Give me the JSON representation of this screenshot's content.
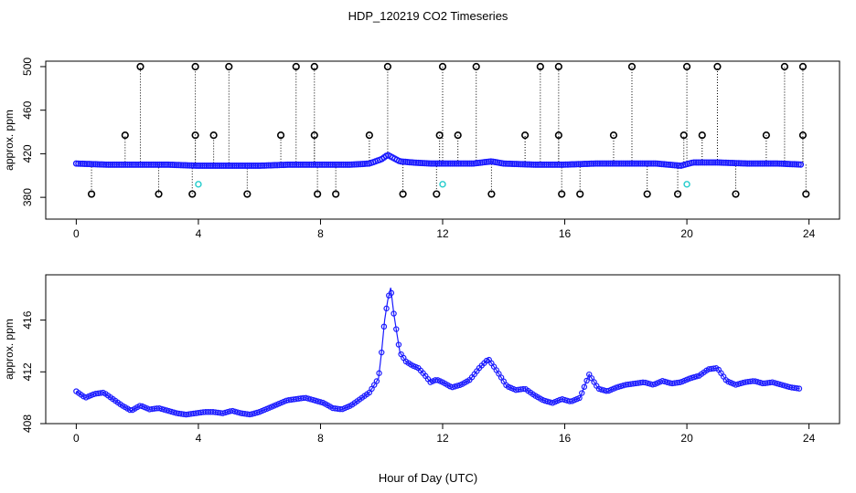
{
  "title": "HDP_120219  CO2 Timeseries",
  "xlabel": "Hour of Day (UTC)",
  "chart_data": [
    {
      "type": "scatter",
      "panel": "top",
      "ylabel": "approx. ppm",
      "xlim": [
        -1,
        25
      ],
      "ylim": [
        360,
        505
      ],
      "x_ticks": [
        "0",
        "4",
        "8",
        "12",
        "16",
        "20",
        "24"
      ],
      "y_ticks": [
        "380",
        "420",
        "460",
        "500"
      ],
      "y_tick_values": [
        380,
        420,
        460,
        500
      ],
      "x_tick_values": [
        0,
        4,
        8,
        12,
        16,
        20,
        24
      ],
      "grid": false,
      "baseline": {
        "x": [
          0.0,
          1.0,
          2.0,
          3.0,
          4.0,
          5.0,
          6.0,
          7.0,
          8.0,
          9.0,
          9.6,
          10.0,
          10.2,
          10.6,
          11.0,
          11.6,
          12.0,
          13.0,
          13.6,
          14.0,
          15.0,
          16.0,
          17.0,
          18.0,
          19.0,
          19.8,
          20.2,
          21.0,
          22.0,
          23.0,
          23.8
        ],
        "y": [
          411,
          410,
          410,
          410,
          409,
          409,
          409,
          410,
          410,
          410,
          411,
          415,
          419,
          413,
          412,
          411,
          411,
          411,
          413,
          411,
          410,
          410,
          411,
          411,
          411,
          409,
          412,
          412,
          411,
          411,
          410
        ]
      },
      "spikes_high": {
        "x": [
          2.1,
          3.9,
          5.0,
          7.2,
          7.8,
          10.2,
          12.0,
          13.1,
          15.2,
          15.8,
          18.2,
          20.0,
          21.0,
          23.2,
          23.8
        ],
        "y": [
          500,
          500,
          500,
          500,
          500,
          500,
          500,
          500,
          500,
          500,
          500,
          500,
          500,
          500,
          500
        ]
      },
      "spikes_mid": {
        "x": [
          1.6,
          3.9,
          4.5,
          6.7,
          7.8,
          9.6,
          11.9,
          12.5,
          14.7,
          15.8,
          17.6,
          19.9,
          20.5,
          22.6,
          23.8
        ],
        "y": [
          437,
          437,
          437,
          437,
          437,
          437,
          437,
          437,
          437,
          437,
          437,
          437,
          437,
          437,
          437
        ]
      },
      "spikes_low": {
        "x": [
          0.5,
          2.7,
          3.8,
          5.6,
          7.9,
          8.5,
          10.7,
          11.8,
          13.6,
          15.9,
          16.5,
          18.7,
          19.7,
          21.6,
          23.9
        ],
        "y": [
          383,
          383,
          383,
          383,
          383,
          383,
          383,
          383,
          383,
          383,
          383,
          383,
          383,
          383,
          383
        ]
      },
      "cyan_points": {
        "x": [
          4.0,
          12.0,
          20.0
        ],
        "y": [
          392,
          392,
          392
        ]
      },
      "colors": {
        "baseline": "#1a1aff",
        "spike": "#000000",
        "cyan": "#22cccc",
        "green": "#22aa22"
      }
    },
    {
      "type": "line",
      "panel": "bottom",
      "ylabel": "approx. ppm",
      "xlim": [
        -1,
        25
      ],
      "ylim": [
        408,
        419.5
      ],
      "x_ticks": [
        "0",
        "4",
        "8",
        "12",
        "16",
        "20",
        "24"
      ],
      "y_ticks": [
        "408",
        "412",
        "416"
      ],
      "y_tick_values": [
        408,
        412,
        416
      ],
      "x_tick_values": [
        0,
        4,
        8,
        12,
        16,
        20,
        24
      ],
      "grid": false,
      "series": [
        {
          "x": [
            0.0,
            0.3,
            0.6,
            0.9,
            1.2,
            1.5,
            1.8,
            2.1,
            2.4,
            2.7,
            3.0,
            3.3,
            3.6,
            3.9,
            4.2,
            4.5,
            4.8,
            5.1,
            5.4,
            5.7,
            6.0,
            6.3,
            6.6,
            6.9,
            7.2,
            7.5,
            7.8,
            8.1,
            8.4,
            8.7,
            9.0,
            9.3,
            9.6,
            9.9,
            10.0,
            10.1,
            10.2,
            10.3,
            10.4,
            10.5,
            10.6,
            10.8,
            11.0,
            11.2,
            11.4,
            11.6,
            11.8,
            12.0,
            12.3,
            12.6,
            12.9,
            13.2,
            13.5,
            13.8,
            14.1,
            14.4,
            14.7,
            15.0,
            15.3,
            15.6,
            15.9,
            16.2,
            16.5,
            16.8,
            17.1,
            17.4,
            17.7,
            18.0,
            18.3,
            18.6,
            18.9,
            19.2,
            19.5,
            19.8,
            20.1,
            20.4,
            20.7,
            21.0,
            21.3,
            21.6,
            21.9,
            22.2,
            22.5,
            22.8,
            23.1,
            23.4,
            23.7
          ],
          "values": [
            410.5,
            410.0,
            410.3,
            410.4,
            409.9,
            409.4,
            409.0,
            409.4,
            409.1,
            409.2,
            409.0,
            408.8,
            408.7,
            408.8,
            408.9,
            408.9,
            408.8,
            409.0,
            408.8,
            408.7,
            408.9,
            409.2,
            409.5,
            409.8,
            409.9,
            410.0,
            409.8,
            409.6,
            409.2,
            409.1,
            409.4,
            409.9,
            410.4,
            411.5,
            413.5,
            416.0,
            417.5,
            418.5,
            416.5,
            415.0,
            413.5,
            412.8,
            412.5,
            412.3,
            411.8,
            411.2,
            411.4,
            411.2,
            410.8,
            411.0,
            411.4,
            412.3,
            413.0,
            412.0,
            410.9,
            410.6,
            410.7,
            410.2,
            409.8,
            409.6,
            409.9,
            409.7,
            410.0,
            411.8,
            410.7,
            410.5,
            410.8,
            411.0,
            411.1,
            411.2,
            411.0,
            411.3,
            411.1,
            411.2,
            411.5,
            411.7,
            412.2,
            412.3,
            411.3,
            411.0,
            411.2,
            411.3,
            411.1,
            411.2,
            411.0,
            410.8,
            410.7
          ]
        }
      ],
      "colors": {
        "line": "#1a1aff",
        "label_green": "#22aa22",
        "label_blue": "#1a1aff"
      }
    }
  ]
}
